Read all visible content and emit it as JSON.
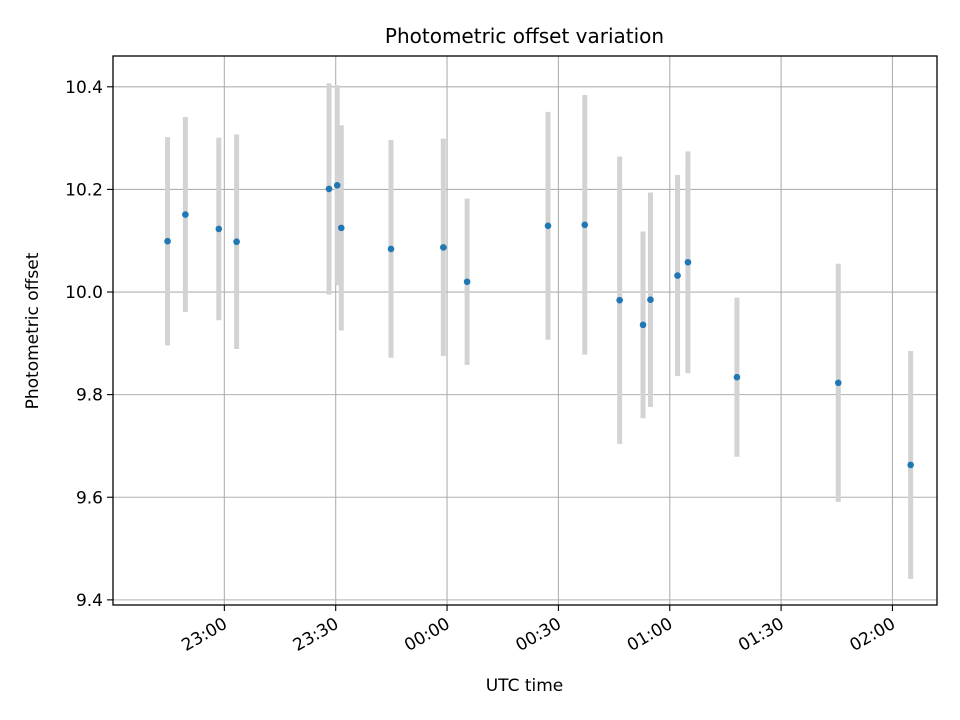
{
  "chart_data": {
    "type": "scatter",
    "title": "Photometric offset variation",
    "xlabel": "UTC time",
    "ylabel": "Photometric offset",
    "xlim_minutes": [
      -30,
      192
    ],
    "ylim": [
      9.39,
      10.46
    ],
    "x_ticks": [
      {
        "minutes": 0,
        "label": "23:00"
      },
      {
        "minutes": 30,
        "label": "23:30"
      },
      {
        "minutes": 60,
        "label": "00:00"
      },
      {
        "minutes": 90,
        "label": "00:30"
      },
      {
        "minutes": 120,
        "label": "01:00"
      },
      {
        "minutes": 150,
        "label": "01:30"
      },
      {
        "minutes": 180,
        "label": "02:00"
      }
    ],
    "y_ticks": [
      9.4,
      9.6,
      9.8,
      10.0,
      10.2,
      10.4
    ],
    "y_tick_labels": [
      "9.4",
      "9.6",
      "9.8",
      "10.0",
      "10.2",
      "10.4"
    ],
    "grid": true,
    "marker_color": "#1f77b4",
    "errorbar_color": "#d3d3d3",
    "points": [
      {
        "time": "22:45:48",
        "minutes": -15.3,
        "y": 10.099,
        "err": 0.203
      },
      {
        "time": "22:50:36",
        "minutes": -10.5,
        "y": 10.151,
        "err": 0.19
      },
      {
        "time": "22:59:24",
        "minutes": -1.5,
        "y": 10.123,
        "err": 0.178
      },
      {
        "time": "23:03:48",
        "minutes": 3.3,
        "y": 10.098,
        "err": 0.209
      },
      {
        "time": "23:28:12",
        "minutes": 28.2,
        "y": 10.201,
        "err": 0.206
      },
      {
        "time": "23:30:24",
        "minutes": 30.4,
        "y": 10.208,
        "err": 0.195
      },
      {
        "time": "23:31:30",
        "minutes": 31.5,
        "y": 10.125,
        "err": 0.2
      },
      {
        "time": "23:44:54",
        "minutes": 44.9,
        "y": 10.084,
        "err": 0.212
      },
      {
        "time": "23:59:00",
        "minutes": 59.0,
        "y": 10.087,
        "err": 0.212
      },
      {
        "time": "00:05:24",
        "minutes": 65.4,
        "y": 10.02,
        "err": 0.162
      },
      {
        "time": "00:27:12",
        "minutes": 87.2,
        "y": 10.129,
        "err": 0.222
      },
      {
        "time": "00:37:06",
        "minutes": 97.1,
        "y": 10.131,
        "err": 0.253
      },
      {
        "time": "00:46:30",
        "minutes": 106.5,
        "y": 9.984,
        "err": 0.28
      },
      {
        "time": "00:52:48",
        "minutes": 112.8,
        "y": 9.936,
        "err": 0.182
      },
      {
        "time": "00:54:48",
        "minutes": 114.8,
        "y": 9.985,
        "err": 0.209
      },
      {
        "time": "01:02:06",
        "minutes": 122.1,
        "y": 10.032,
        "err": 0.196
      },
      {
        "time": "01:04:54",
        "minutes": 124.9,
        "y": 10.058,
        "err": 0.216
      },
      {
        "time": "01:18:06",
        "minutes": 138.1,
        "y": 9.834,
        "err": 0.155
      },
      {
        "time": "01:45:24",
        "minutes": 165.4,
        "y": 9.823,
        "err": 0.232
      },
      {
        "time": "02:04:54",
        "minutes": 184.9,
        "y": 9.663,
        "err": 0.222
      }
    ]
  }
}
